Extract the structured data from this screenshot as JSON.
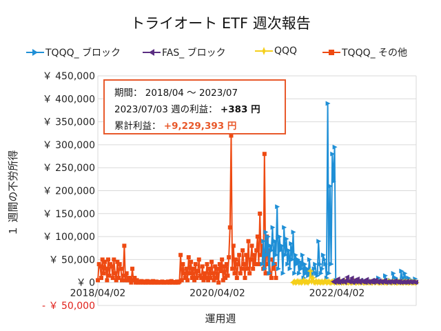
{
  "chart_data": {
    "type": "line",
    "title": "トライオート ETF 週次報告",
    "xlabel": "運用週",
    "ylabel": "１ 週間の不労所得",
    "ylim": [
      -50000,
      450000
    ],
    "yticks": [
      {
        "value": 450000,
        "label": "￥ 450,000"
      },
      {
        "value": 400000,
        "label": "￥ 400,000"
      },
      {
        "value": 350000,
        "label": "￥ 350,000"
      },
      {
        "value": 300000,
        "label": "￥ 300,000"
      },
      {
        "value": 250000,
        "label": "￥ 250,000"
      },
      {
        "value": 200000,
        "label": "￥ 200,000"
      },
      {
        "value": 150000,
        "label": "￥ 150,000"
      },
      {
        "value": 100000,
        "label": "￥ 100,000"
      },
      {
        "value": 50000,
        "label": "￥ 50,000"
      },
      {
        "value": 0,
        "label": "￥ 0"
      },
      {
        "value": -50000,
        "label": "- ￥ 50,000"
      }
    ],
    "xticks": [
      {
        "index": 0,
        "label": "2018/04/02"
      },
      {
        "index": 104,
        "label": "2020/04/02"
      },
      {
        "index": 208,
        "label": "2022/04/02"
      }
    ],
    "week_count": 278,
    "grid": true,
    "legend_position": "top",
    "series": [
      {
        "name": "TQQQ_ ブロック",
        "color": "#1f8fd6",
        "marker": "triangle-right",
        "start_week": 143,
        "values": [
          40000,
          90000,
          30000,
          110000,
          60000,
          100000,
          20000,
          80000,
          70000,
          120000,
          40000,
          90000,
          60000,
          165000,
          30000,
          100000,
          70000,
          80000,
          20000,
          120000,
          60000,
          95000,
          40000,
          70000,
          30000,
          85000,
          50000,
          110000,
          20000,
          60000,
          40000,
          50000,
          20000,
          45000,
          30000,
          60000,
          10000,
          40000,
          20000,
          30000,
          15000,
          50000,
          20000,
          25000,
          10000,
          30000,
          40000,
          20000,
          15000,
          90000,
          40000,
          20000,
          30000,
          60000,
          50000,
          40000,
          10000,
          390000,
          20000,
          210000,
          40000,
          280000,
          220000,
          295000,
          5000,
          0,
          2000,
          1000,
          0,
          3000,
          0,
          0,
          5000,
          2000,
          0,
          1000,
          3000,
          0,
          2000,
          0,
          1000,
          0,
          3000,
          0,
          0,
          2000,
          1000,
          0,
          5000,
          0,
          0,
          2000,
          0,
          1000,
          0,
          3000,
          0,
          0,
          2000,
          5000,
          0,
          10000,
          3000,
          0,
          2000,
          0,
          0,
          15000,
          0,
          3000,
          0,
          5000,
          0,
          0,
          20000,
          0,
          10000,
          0,
          5000,
          0,
          0,
          25000,
          0,
          10000,
          20000,
          5000,
          0,
          10000,
          0,
          0,
          5000,
          0,
          0,
          8000,
          0
        ]
      },
      {
        "name": "FAS_ ブロック",
        "color": "#5a2d82",
        "marker": "triangle-left",
        "start_week": 205,
        "values": [
          2000,
          0,
          5000,
          1000,
          8000,
          0,
          3000,
          1000,
          6000,
          2000,
          0,
          4000,
          12000,
          3000,
          1000,
          5000,
          10000,
          0,
          2000,
          6000,
          1000,
          8000,
          3000,
          0,
          5000,
          2000,
          1000,
          4000,
          0,
          7000,
          2000,
          0,
          3000,
          1000,
          5000,
          0,
          2000,
          6000,
          1000,
          0,
          4000,
          2000,
          0,
          3000,
          1000,
          5000,
          0,
          2000,
          1000,
          0,
          3000,
          1000,
          2000,
          0,
          4000,
          1000,
          2000,
          0,
          3000,
          0,
          1000,
          2000,
          0,
          1000,
          3000,
          0,
          2000,
          1000,
          0,
          2000,
          1000,
          0,
          1000
        ]
      },
      {
        "name": "QQQ",
        "color": "#f5cf1a",
        "marker": "star",
        "start_week": 170,
        "values": [
          0,
          2000,
          0,
          1000,
          3000,
          0,
          2000,
          0,
          1000,
          5000,
          0,
          2000,
          1000,
          0,
          3000,
          25000,
          2000,
          10000,
          1000,
          0,
          3000,
          0,
          2000,
          1000,
          0,
          2000,
          0,
          1000,
          3000,
          0,
          1000,
          2000,
          0,
          0,
          2000,
          1000,
          0,
          3000,
          0,
          1000,
          0,
          2000,
          0,
          1000,
          0,
          3000,
          0,
          1000,
          0,
          2000,
          0,
          0,
          1000,
          3000,
          0,
          0,
          2000,
          0,
          1000,
          0,
          3000,
          0,
          0,
          1000,
          0,
          2000,
          0,
          1000,
          0,
          0,
          3000,
          0,
          1000,
          2000,
          0,
          0,
          1000,
          0,
          2000,
          0,
          1000,
          0,
          0,
          3000,
          1000,
          0,
          0,
          2000,
          0,
          1000,
          0,
          0,
          2000,
          0,
          1000,
          0,
          0,
          2000,
          0,
          1000,
          0,
          0,
          2000,
          0,
          0,
          1000,
          0,
          0
        ]
      },
      {
        "name": "TQQQ_ その他",
        "color": "#ee4a12",
        "marker": "square",
        "start_week": 0,
        "values": [
          5000,
          40000,
          35000,
          10000,
          50000,
          20000,
          45000,
          30000,
          5000,
          50000,
          15000,
          40000,
          35000,
          10000,
          50000,
          20000,
          5000,
          45000,
          10000,
          40000,
          30000,
          5000,
          15000,
          80000,
          5000,
          20000,
          5000,
          10000,
          5000,
          0,
          30000,
          5000,
          10000,
          0,
          5000,
          0,
          2000,
          0,
          3000,
          0,
          2000,
          0,
          0,
          3000,
          0,
          2000,
          0,
          0,
          3000,
          0,
          0,
          2000,
          0,
          0,
          1000,
          0,
          2000,
          0,
          0,
          1000,
          0,
          2000,
          0,
          0,
          3000,
          0,
          1000,
          0,
          0,
          2000,
          0,
          2000,
          60000,
          5000,
          40000,
          20000,
          10000,
          30000,
          5000,
          55000,
          20000,
          45000,
          10000,
          30000,
          5000,
          40000,
          10000,
          25000,
          50000,
          15000,
          10000,
          35000,
          5000,
          20000,
          10000,
          40000,
          5000,
          30000,
          10000,
          45000,
          20000,
          5000,
          35000,
          10000,
          30000,
          0,
          40000,
          25000,
          50000,
          5000,
          35000,
          10000,
          40000,
          15000,
          55000,
          120000,
          320000,
          30000,
          80000,
          20000,
          50000,
          10000,
          40000,
          60000,
          20000,
          30000,
          70000,
          40000,
          10000,
          60000,
          30000,
          90000,
          20000,
          50000,
          80000,
          30000,
          60000,
          40000,
          70000,
          100000,
          40000,
          150000,
          60000,
          80000,
          30000,
          280000,
          20000,
          100000,
          40000,
          70000,
          20000,
          10000,
          50000,
          30000,
          40000,
          10000
        ]
      }
    ],
    "annotation": {
      "period_label": "期間：",
      "period_value": "2018/04 ～ 2023/07",
      "week_label": "2023/07/03 週の利益：",
      "week_value": "+383 円",
      "total_label": "累計利益：",
      "total_value": "+9,229,393 円"
    }
  }
}
